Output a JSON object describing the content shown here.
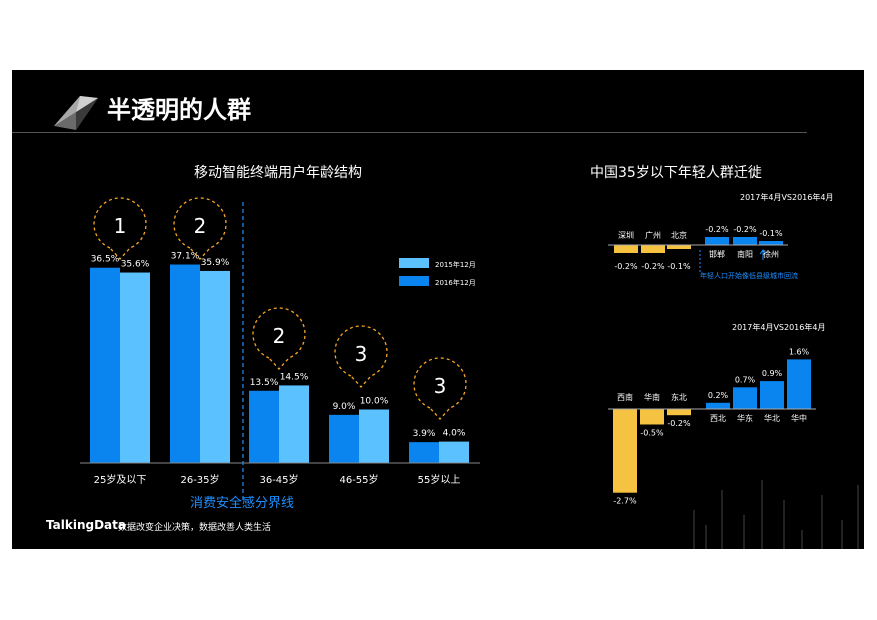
{
  "page": {
    "title": "半透明的人群",
    "footer_brand": "TalkingData",
    "footer_tagline": "数据改变企业决策，数据改善人类生活"
  },
  "chart_data": [
    {
      "type": "bar",
      "title": "移动智能终端用户年龄结构",
      "categories": [
        "25岁及以下",
        "26-35岁",
        "36-45岁",
        "46-55岁",
        "55岁以上"
      ],
      "series": [
        {
          "name": "2016年12月",
          "values": [
            36.5,
            37.1,
            13.5,
            9.0,
            3.9
          ],
          "color": "#0a84ef"
        },
        {
          "name": "2015年12月",
          "values": [
            35.6,
            35.9,
            14.5,
            10.0,
            4.0
          ],
          "color": "#5cc2ff"
        }
      ],
      "value_labels": [
        [
          "36.5%",
          "37.1%",
          "13.5%",
          "9.0%",
          "3.9%"
        ],
        [
          "35.6%",
          "35.9%",
          "14.5%",
          "10.0%",
          "4.0%"
        ]
      ],
      "legend_order": [
        "2015年12月",
        "2016年12月"
      ],
      "bubble_numbers": [
        "1",
        "2",
        "2",
        "3",
        "3"
      ],
      "divider_label": "消费安全感分界线",
      "ylim": [
        0,
        40
      ]
    },
    {
      "type": "bar",
      "title": "中国35岁以下年轻人群迁徙",
      "subtitle": "2017年4月VS2016年4月",
      "categories": [
        "深圳",
        "广州",
        "北京",
        "邯郸",
        "南阳",
        "徐州"
      ],
      "values": [
        -0.2,
        -0.2,
        -0.1,
        -0.2,
        -0.2,
        -0.1
      ],
      "value_labels": [
        "-0.2%",
        "-0.2%",
        "-0.1%",
        "-0.2%",
        "-0.2%",
        "-0.1%"
      ],
      "note": "年轻人口开始像低县级城市回流",
      "colors": {
        "negative": "#f5c242",
        "positive": "#0a84ef"
      }
    },
    {
      "type": "bar",
      "subtitle": "2017年4月VS2016年4月",
      "categories": [
        "西南",
        "华南",
        "东北",
        "西北",
        "华东",
        "华北",
        "华中"
      ],
      "values": [
        -2.7,
        -0.5,
        -0.2,
        0.2,
        0.7,
        0.9,
        1.6
      ],
      "value_labels": [
        "-2.7%",
        "-0.5%",
        "-0.2%",
        "0.2%",
        "0.7%",
        "0.9%",
        "1.6%"
      ],
      "colors": {
        "negative": "#f5c242",
        "positive": "#0a84ef"
      }
    }
  ]
}
